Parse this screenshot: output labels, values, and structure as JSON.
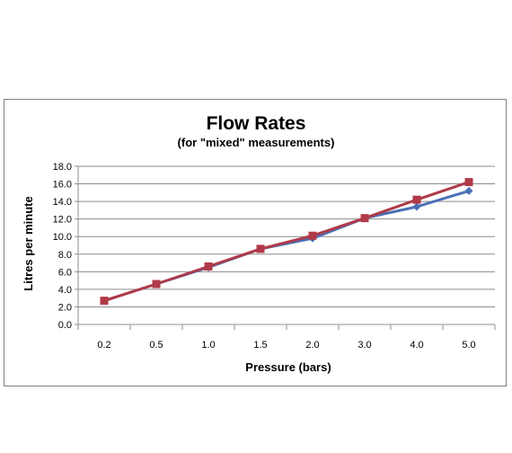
{
  "chart_data": {
    "type": "line",
    "title": "Flow Rates",
    "subtitle": "(for \"mixed\"  measurements)",
    "xlabel": "Pressure (bars)",
    "ylabel": "Litres per minute",
    "categories": [
      "0.2",
      "0.5",
      "1.0",
      "1.5",
      "2.0",
      "3.0",
      "4.0",
      "5.0"
    ],
    "y_ticks": [
      "0.0",
      "2.0",
      "4.0",
      "6.0",
      "8.0",
      "10.0",
      "12.0",
      "14.0",
      "16.0",
      "18.0"
    ],
    "ylim": [
      0,
      18
    ],
    "grid": true,
    "legend": "none",
    "series": [
      {
        "color": "#4a6fb5",
        "marker": "diamond",
        "values": [
          2.7,
          4.6,
          6.5,
          8.6,
          9.8,
          12.1,
          13.4,
          15.2
        ]
      },
      {
        "color": "#b03a48",
        "marker": "square",
        "values": [
          2.7,
          4.6,
          6.6,
          8.6,
          10.1,
          12.1,
          14.2,
          16.2
        ]
      }
    ]
  }
}
